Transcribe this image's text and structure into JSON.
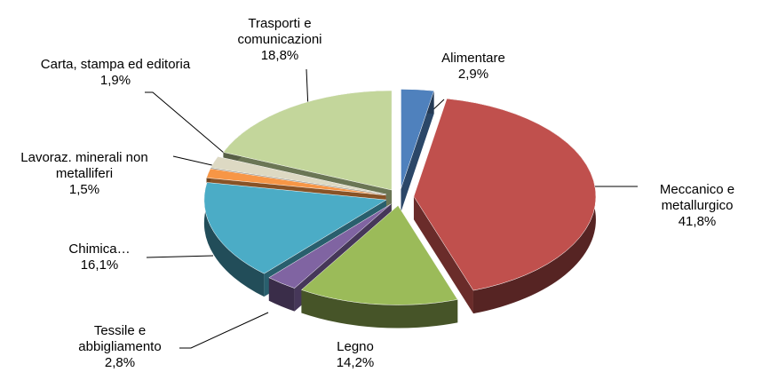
{
  "chart_data": {
    "type": "pie",
    "categories": [
      "Alimentare",
      "Meccanico e metallurgico",
      "Legno",
      "Tessile e abbigliamento",
      "Chimica…",
      "Lavoraz. minerali non metalliferi",
      "Carta, stampa ed editoria",
      "Trasporti e comunicazioni"
    ],
    "values": [
      2.9,
      41.8,
      14.2,
      2.8,
      16.1,
      1.5,
      1.9,
      18.8
    ],
    "value_labels": [
      "2,9%",
      "41,8%",
      "14,2%",
      "2,8%",
      "16,1%",
      "1,5%",
      "1,9%",
      "18,8%"
    ],
    "colors": [
      "#4f81bd",
      "#c0504d",
      "#9bbb59",
      "#8064a2",
      "#4bacc6",
      "#f79646",
      "#ddd9c3",
      "#c3d69b"
    ]
  }
}
